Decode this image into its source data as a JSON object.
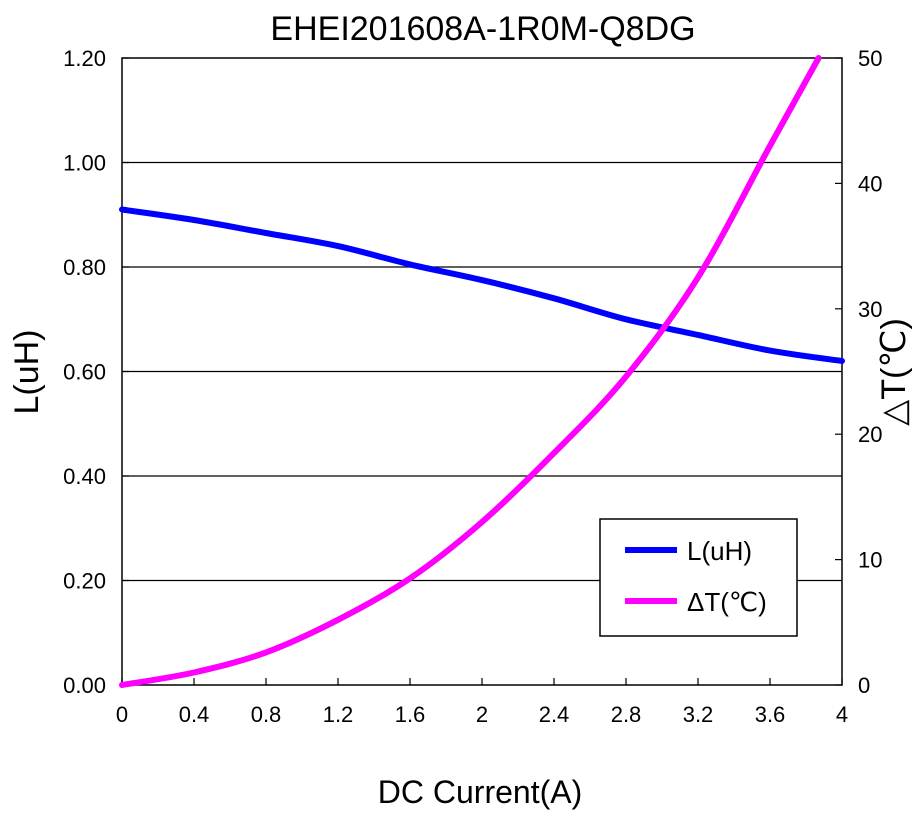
{
  "chart_data": {
    "type": "line",
    "title": "EHEI201608A-1R0M-Q8DG",
    "xlabel": "DC Current(A)",
    "ylabel": "L(uH)",
    "y2label": "△T(℃)",
    "xlim": [
      0,
      4
    ],
    "ylim": [
      0,
      1.2
    ],
    "y2lim": [
      0,
      50
    ],
    "x_ticks": [
      "0",
      "0.4",
      "0.8",
      "1.2",
      "1.6",
      "2",
      "2.4",
      "2.8",
      "3.2",
      "3.6",
      "4"
    ],
    "y_ticks": [
      "0.00",
      "0.20",
      "0.40",
      "0.60",
      "0.80",
      "1.00",
      "1.20"
    ],
    "y2_ticks": [
      "0",
      "10",
      "20",
      "30",
      "40",
      "50"
    ],
    "grid": "horizontal",
    "legend_position": "bottom-right",
    "series": [
      {
        "name": "L(uH)",
        "axis": "left",
        "color": "#0000ff",
        "x": [
          0,
          0.4,
          0.8,
          1.2,
          1.6,
          2.0,
          2.4,
          2.8,
          3.2,
          3.6,
          4.0
        ],
        "y": [
          0.91,
          0.89,
          0.865,
          0.84,
          0.805,
          0.775,
          0.74,
          0.7,
          0.67,
          0.64,
          0.62
        ]
      },
      {
        "name": "ΔT(℃)",
        "axis": "right",
        "color": "#ff00ff",
        "x": [
          0,
          0.4,
          0.8,
          1.2,
          1.6,
          2.0,
          2.4,
          2.8,
          3.2,
          3.6,
          3.87
        ],
        "y": [
          0,
          1,
          2.6,
          5.2,
          8.5,
          13,
          18.5,
          24.6,
          32.5,
          43,
          50
        ]
      }
    ]
  }
}
